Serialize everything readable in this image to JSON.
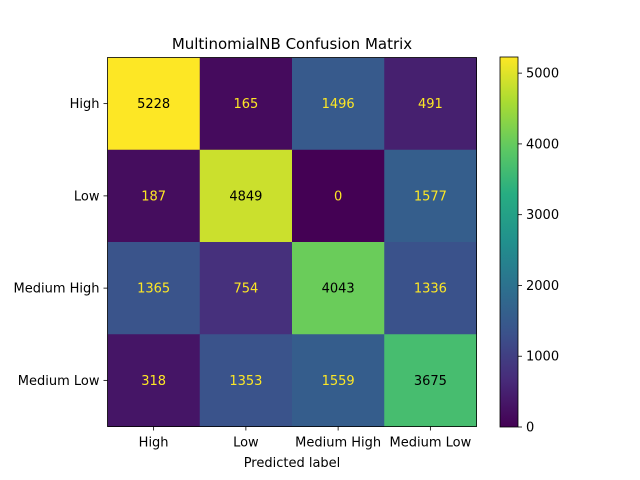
{
  "chart_data": {
    "type": "heatmap",
    "title": "MultinomialNB Confusion Matrix",
    "xlabel": "Predicted label",
    "ylabel": "",
    "x_categories": [
      "High",
      "Low",
      "Medium High",
      "Medium Low"
    ],
    "y_categories": [
      "High",
      "Low",
      "Medium High",
      "Medium Low"
    ],
    "values": [
      [
        5228,
        165,
        1496,
        491
      ],
      [
        187,
        4849,
        0,
        1577
      ],
      [
        1365,
        754,
        4043,
        1336
      ],
      [
        318,
        1353,
        1559,
        3675
      ]
    ],
    "colormap": "viridis",
    "color_range": [
      0,
      5228
    ],
    "colorbar_ticks": [
      0,
      1000,
      2000,
      3000,
      4000,
      5000
    ],
    "colorbar_tick_labels": [
      "0",
      "1000",
      "2000",
      "3000",
      "4000",
      "5000"
    ],
    "text_color_high": "#000000",
    "text_color_low": "#fde725",
    "legend": "none"
  }
}
